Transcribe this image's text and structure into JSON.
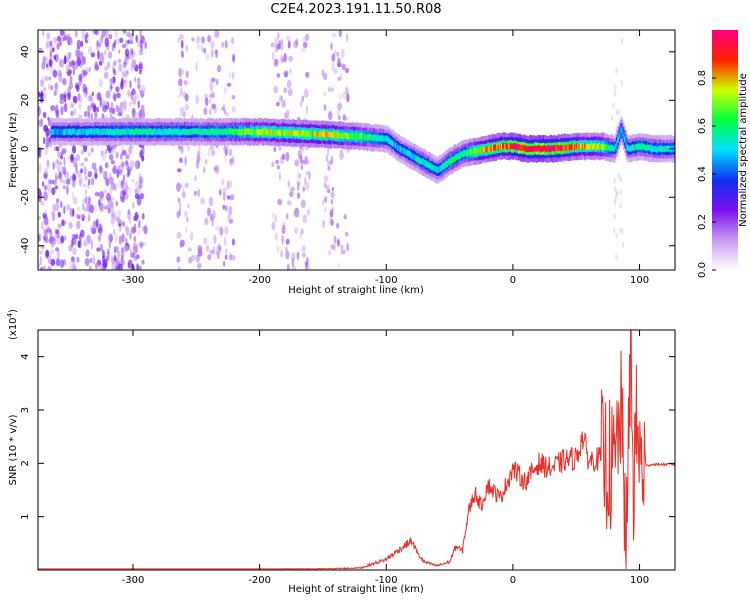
{
  "title": "C2E4.2023.191.11.50.R08",
  "chart_data": [
    {
      "type": "heatmap",
      "xlabel": "Height of straight line (km)",
      "ylabel": "Frequency (Hz)",
      "xlim": [
        -375,
        128
      ],
      "ylim": [
        -50,
        49
      ],
      "xticks": [
        -300,
        -200,
        -100,
        0,
        100
      ],
      "yticks": [
        -40,
        -20,
        0,
        20,
        40
      ],
      "colorbar": {
        "label": "Normalized spectral amplitude",
        "range": [
          0.0,
          1.0
        ],
        "ticks": [
          0.0,
          0.2,
          0.4,
          0.6,
          0.8
        ],
        "tick_labels": [
          "0.0",
          "0.2",
          "0.4",
          "0.6",
          "0.8"
        ],
        "colormap": [
          "#ffffff",
          "#c89cf0",
          "#7a10f0",
          "#1030f0",
          "#00e0ff",
          "#00ff40",
          "#d0ff00",
          "#ff2000",
          "#ff0080"
        ]
      },
      "ridge": {
        "x": [
          -360,
          -300,
          -250,
          -225,
          -200,
          -150,
          -120,
          -100,
          -90,
          -80,
          -70,
          -60,
          -50,
          -40,
          -30,
          -20,
          -10,
          0,
          10,
          30,
          50,
          60,
          70,
          80,
          85,
          90,
          100,
          110,
          128
        ],
        "y": [
          7,
          7,
          7,
          7,
          7,
          6,
          5,
          4,
          0,
          -3,
          -6,
          -9,
          -5,
          -2,
          -1,
          0,
          1,
          1,
          0,
          0,
          1,
          1,
          1,
          0,
          8,
          0,
          1,
          0,
          0
        ],
        "peak_amplitude": [
          0.4,
          0.5,
          0.5,
          0.55,
          0.7,
          0.75,
          0.6,
          0.45,
          0.4,
          0.45,
          0.5,
          0.45,
          0.55,
          0.5,
          0.7,
          0.8,
          0.85,
          0.95,
          1.0,
          1.0,
          0.8,
          0.75,
          0.7,
          0.45,
          0.4,
          0.45,
          0.5,
          0.5,
          0.45
        ]
      },
      "noise_bands_x": [
        [
          -375,
          -290
        ],
        [
          -265,
          -220
        ],
        [
          -190,
          -160
        ],
        [
          -150,
          -130
        ]
      ]
    },
    {
      "type": "line",
      "xlabel": "Height of straight line (km)",
      "ylabel": "SNR (10 * v/v)",
      "y_multiplier": "(x10",
      "y_multiplier_exp": "4",
      "xlim": [
        -375,
        128
      ],
      "ylim": [
        0,
        4.5
      ],
      "xticks": [
        -300,
        -200,
        -100,
        0,
        100
      ],
      "yticks": [
        1,
        2,
        3,
        4
      ],
      "color": "#e8302a",
      "x": [
        -375,
        -300,
        -200,
        -150,
        -120,
        -110,
        -100,
        -90,
        -80,
        -75,
        -70,
        -60,
        -50,
        -45,
        -40,
        -35,
        -30,
        -25,
        -20,
        -10,
        0,
        10,
        20,
        30,
        40,
        50,
        55,
        60,
        70,
        75,
        80,
        85,
        90,
        93,
        95,
        98,
        100,
        105,
        110,
        128
      ],
      "y": [
        0.0,
        0.0,
        0.01,
        0.02,
        0.04,
        0.12,
        0.2,
        0.38,
        0.55,
        0.3,
        0.15,
        0.08,
        0.15,
        0.45,
        0.35,
        1.1,
        1.45,
        1.2,
        1.6,
        1.35,
        1.9,
        1.65,
        2.0,
        1.9,
        2.05,
        2.1,
        2.5,
        2.05,
        2.1,
        2.0,
        1.8,
        3.0,
        0.5,
        4.3,
        1.6,
        2.8,
        2.0,
        1.95,
        1.98,
        1.98
      ]
    }
  ]
}
